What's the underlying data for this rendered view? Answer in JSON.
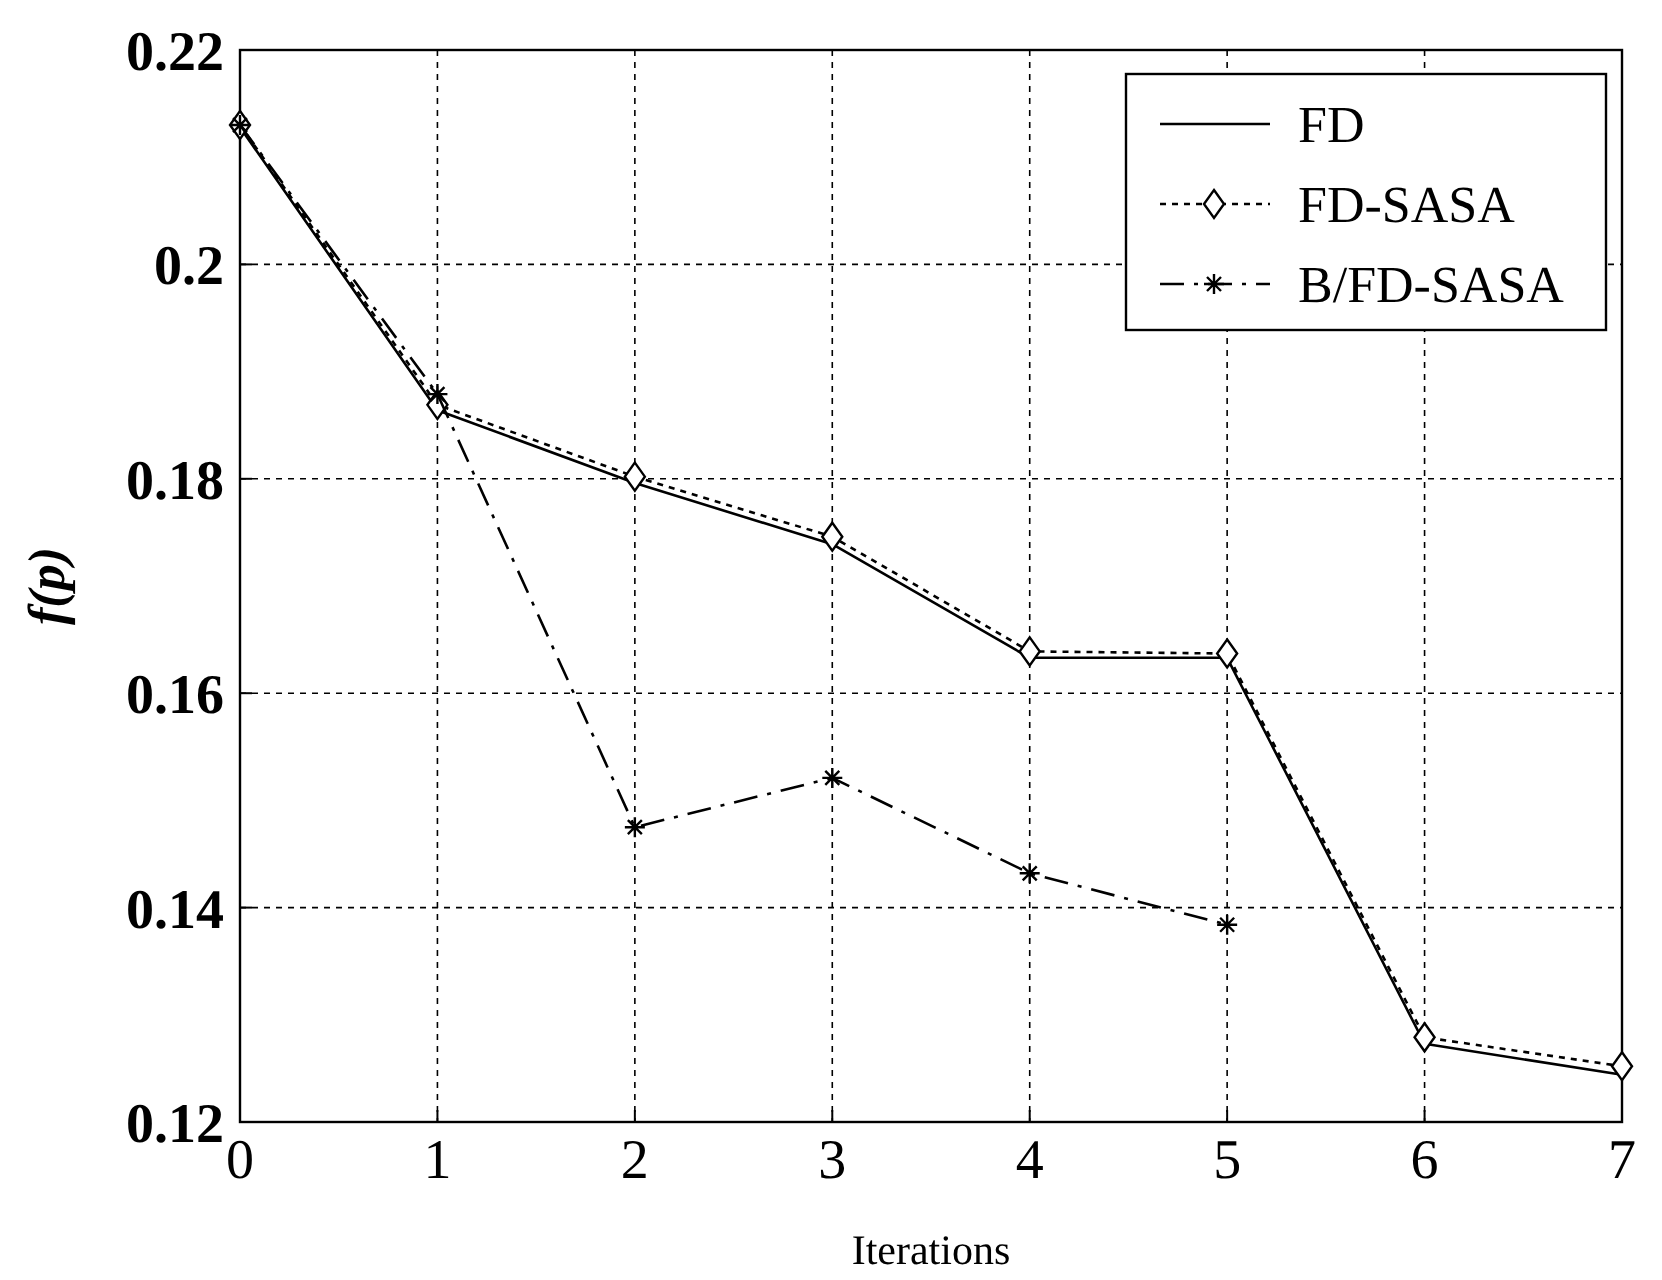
{
  "chart_data": {
    "type": "line",
    "xlabel": "Iterations",
    "ylabel": "f(p)",
    "x": [
      0,
      1,
      2,
      3,
      4,
      5,
      6,
      7
    ],
    "xlim": [
      0,
      7
    ],
    "xticks": [
      0,
      1,
      2,
      3,
      4,
      5,
      6,
      7
    ],
    "ylim": [
      0.12,
      0.22
    ],
    "yticks": [
      0.12,
      0.14,
      0.16,
      0.18,
      0.2,
      0.22
    ],
    "grid": true,
    "legend": "top right",
    "series": [
      {
        "name": "FD",
        "color": "#000000",
        "line_style": "solid",
        "marker": "none",
        "values": [
          0.2128,
          0.1864,
          0.1796,
          0.1739,
          0.1633,
          0.1633,
          0.1273,
          0.1244
        ]
      },
      {
        "name": "FD-SASA",
        "color": "#000000",
        "line_style": "dotted",
        "marker": "diamond",
        "values": [
          0.213,
          0.1869,
          0.1802,
          0.1746,
          0.1639,
          0.1637,
          0.1279,
          0.1252
        ]
      },
      {
        "name": "B/FD-SASA",
        "color": "#000000",
        "line_style": "dashdot",
        "marker": "cross",
        "x": [
          0,
          1,
          2,
          3,
          4,
          5
        ],
        "values": [
          0.213,
          0.1879,
          0.1475,
          0.1521,
          0.1432,
          0.1384
        ]
      }
    ]
  }
}
